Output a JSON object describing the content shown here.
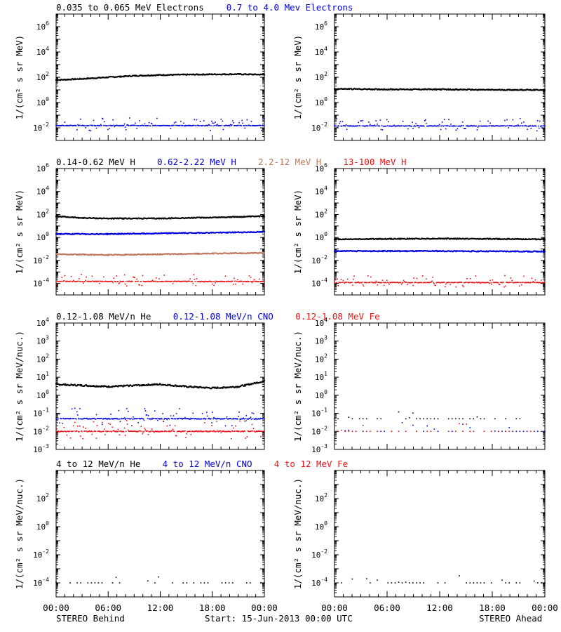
{
  "colors": {
    "black": "#000000",
    "blue": "#0000dd",
    "brown": "#c07860",
    "red": "#ee1111"
  },
  "row_titles": [
    [
      {
        "text": "0.035 to 0.065 MeV Electrons",
        "color": "black"
      },
      {
        "text": "0.7 to 4.0 Mev Electrons",
        "color": "blue"
      }
    ],
    [
      {
        "text": "0.14-0.62 MeV H",
        "color": "black"
      },
      {
        "text": "0.62-2.22 MeV H",
        "color": "blue"
      },
      {
        "text": "2.2-12 MeV H",
        "color": "brown"
      },
      {
        "text": "13-100 MeV H",
        "color": "red"
      }
    ],
    [
      {
        "text": "0.12-1.08 MeV/n He",
        "color": "black"
      },
      {
        "text": "0.12-1.08 MeV/n CNO",
        "color": "blue"
      },
      {
        "text": "0.12-1.08 MeV Fe",
        "color": "red"
      }
    ],
    [
      {
        "text": "4 to 12 MeV/n He",
        "color": "black"
      },
      {
        "text": "4 to 12 MeV/n CNO",
        "color": "blue"
      },
      {
        "text": "4 to 12 MeV Fe",
        "color": "red"
      }
    ]
  ],
  "footer": {
    "behind": "STEREO Behind",
    "start": "Start: 15-Jun-2013 00:00 UTC",
    "ahead": "STEREO Ahead"
  },
  "chart_data": [
    {
      "id": "electrons-behind",
      "type": "scatter",
      "row": 0,
      "col": 0,
      "ylabel": "1/(cm² s sr MeV)",
      "yscale": "log",
      "ylim": [
        -3,
        7
      ],
      "yticks": [
        -2,
        0,
        2,
        4,
        6
      ],
      "xticks": [
        "00:00",
        "06:00",
        "12:00",
        "18:00",
        "00:00"
      ],
      "xlim": [
        0,
        24
      ],
      "series": [
        {
          "color": "black",
          "style": "line",
          "points": [
            [
              0,
              60
            ],
            [
              3,
              75
            ],
            [
              6,
              100
            ],
            [
              9,
              130
            ],
            [
              12,
              150
            ],
            [
              15,
              160
            ],
            [
              18,
              170
            ],
            [
              21,
              175
            ],
            [
              24,
              160
            ]
          ]
        },
        {
          "color": "blue",
          "style": "noisy",
          "points": [
            [
              0,
              0.015
            ],
            [
              24,
              0.015
            ]
          ]
        }
      ]
    },
    {
      "id": "electrons-ahead",
      "type": "scatter",
      "row": 0,
      "col": 1,
      "ylabel": "1/(cm² s sr MeV)",
      "yscale": "log",
      "ylim": [
        -3,
        7
      ],
      "yticks": [
        -2,
        0,
        2,
        4,
        6
      ],
      "xticks": [
        "00:00",
        "06:00",
        "12:00",
        "18:00",
        "00:00"
      ],
      "xlim": [
        0,
        24
      ],
      "series": [
        {
          "color": "black",
          "style": "line",
          "points": [
            [
              0,
              12
            ],
            [
              6,
              11
            ],
            [
              12,
              11
            ],
            [
              18,
              10
            ],
            [
              24,
              10
            ]
          ]
        },
        {
          "color": "blue",
          "style": "noisy",
          "points": [
            [
              0,
              0.014
            ],
            [
              24,
              0.014
            ]
          ]
        }
      ]
    },
    {
      "id": "protons-behind",
      "type": "scatter",
      "row": 1,
      "col": 0,
      "ylabel": "1/(cm² s sr MeV)",
      "yscale": "log",
      "ylim": [
        -5,
        6
      ],
      "yticks": [
        -4,
        -2,
        0,
        2,
        4,
        6
      ],
      "xticks": [
        "00:00",
        "06:00",
        "12:00",
        "18:00",
        "00:00"
      ],
      "xlim": [
        0,
        24
      ],
      "series": [
        {
          "color": "black",
          "style": "line",
          "points": [
            [
              0,
              70
            ],
            [
              3,
              50
            ],
            [
              6,
              45
            ],
            [
              12,
              45
            ],
            [
              18,
              55
            ],
            [
              24,
              70
            ]
          ]
        },
        {
          "color": "blue",
          "style": "line",
          "points": [
            [
              0,
              2
            ],
            [
              6,
              2
            ],
            [
              12,
              2.3
            ],
            [
              18,
              2.6
            ],
            [
              24,
              3.0
            ]
          ]
        },
        {
          "color": "brown",
          "style": "line",
          "points": [
            [
              0,
              0.035
            ],
            [
              6,
              0.03
            ],
            [
              12,
              0.035
            ],
            [
              18,
              0.04
            ],
            [
              24,
              0.045
            ]
          ]
        },
        {
          "color": "red",
          "style": "noisy",
          "points": [
            [
              0,
              0.00015
            ],
            [
              24,
              0.00015
            ]
          ]
        }
      ]
    },
    {
      "id": "protons-ahead",
      "type": "scatter",
      "row": 1,
      "col": 1,
      "ylabel": "1/(cm² s sr MeV)",
      "yscale": "log",
      "ylim": [
        -5,
        6
      ],
      "yticks": [
        -4,
        -2,
        0,
        2,
        4,
        6
      ],
      "xticks": [
        "00:00",
        "06:00",
        "12:00",
        "18:00",
        "00:00"
      ],
      "xlim": [
        0,
        24
      ],
      "series": [
        {
          "color": "black",
          "style": "line",
          "points": [
            [
              0,
              0.7
            ],
            [
              12,
              0.8
            ],
            [
              24,
              0.7
            ]
          ]
        },
        {
          "color": "blue",
          "style": "line",
          "points": [
            [
              0,
              0.065
            ],
            [
              12,
              0.065
            ],
            [
              24,
              0.06
            ]
          ]
        },
        {
          "color": "red",
          "style": "noisy",
          "points": [
            [
              0,
              0.00012
            ],
            [
              24,
              0.00012
            ]
          ]
        }
      ]
    },
    {
      "id": "heavy-behind",
      "type": "scatter",
      "row": 2,
      "col": 0,
      "ylabel": "1/(cm² s sr MeV/nuc.)",
      "yscale": "log",
      "ylim": [
        -3,
        4
      ],
      "yticks": [
        -3,
        -2,
        -1,
        0,
        1,
        2,
        3,
        4
      ],
      "xticks": [
        "00:00",
        "06:00",
        "12:00",
        "18:00",
        "00:00"
      ],
      "xlim": [
        0,
        24
      ],
      "series": [
        {
          "color": "black",
          "style": "line",
          "points": [
            [
              0,
              4
            ],
            [
              3,
              3.5
            ],
            [
              6,
              3
            ],
            [
              9,
              3.5
            ],
            [
              12,
              4
            ],
            [
              15,
              3
            ],
            [
              18,
              2.5
            ],
            [
              21,
              3
            ],
            [
              24,
              6
            ]
          ]
        },
        {
          "color": "blue",
          "style": "noisy",
          "points": [
            [
              0,
              0.05
            ],
            [
              24,
              0.05
            ]
          ]
        },
        {
          "color": "red",
          "style": "noisy",
          "points": [
            [
              0,
              0.01
            ],
            [
              24,
              0.01
            ]
          ]
        }
      ]
    },
    {
      "id": "heavy-ahead",
      "type": "scatter",
      "row": 2,
      "col": 1,
      "ylabel": "1/(cm² s sr MeV/nuc.)",
      "yscale": "log",
      "ylim": [
        -3,
        4
      ],
      "yticks": [
        -3,
        -2,
        -1,
        0,
        1,
        2,
        3,
        4
      ],
      "xticks": [
        "00:00",
        "06:00",
        "12:00",
        "18:00",
        "00:00"
      ],
      "xlim": [
        0,
        24
      ],
      "series": [
        {
          "color": "black",
          "style": "sparse",
          "points": [
            [
              0,
              0.05
            ],
            [
              24,
              0.05
            ]
          ]
        },
        {
          "color": "blue",
          "style": "sparse",
          "points": [
            [
              0,
              0.01
            ],
            [
              24,
              0.01
            ]
          ]
        },
        {
          "color": "red",
          "style": "sparse",
          "points": [
            [
              0,
              0.01
            ],
            [
              24,
              0.01
            ]
          ]
        }
      ]
    },
    {
      "id": "high-behind",
      "type": "scatter",
      "row": 3,
      "col": 0,
      "ylabel": "1/(cm² s sr MeV/nuc.)",
      "yscale": "log",
      "ylim": [
        -5,
        4
      ],
      "yticks": [
        -4,
        -2,
        0,
        2
      ],
      "xticks": [
        "00:00",
        "06:00",
        "12:00",
        "18:00",
        "00:00"
      ],
      "xlim": [
        0,
        24
      ],
      "series": [
        {
          "color": "black",
          "style": "sparse",
          "points": [
            [
              0,
              0.0001
            ],
            [
              24,
              0.0001
            ]
          ]
        }
      ]
    },
    {
      "id": "high-ahead",
      "type": "scatter",
      "row": 3,
      "col": 1,
      "ylabel": "1/(cm² s sr MeV/nuc.)",
      "yscale": "log",
      "ylim": [
        -5,
        4
      ],
      "yticks": [
        -4,
        -2,
        0,
        2
      ],
      "xticks": [
        "00:00",
        "06:00",
        "12:00",
        "18:00",
        "00:00"
      ],
      "xlim": [
        0,
        24
      ],
      "series": [
        {
          "color": "black",
          "style": "sparse",
          "points": [
            [
              0,
              0.0001
            ],
            [
              24,
              0.0001
            ]
          ]
        }
      ]
    }
  ]
}
